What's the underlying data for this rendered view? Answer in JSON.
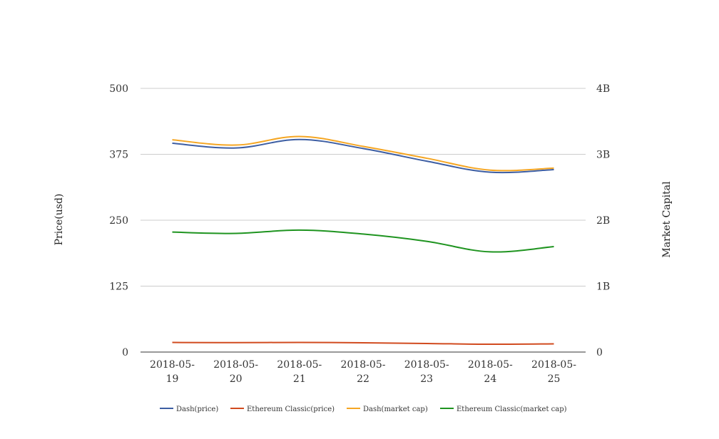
{
  "chart_data": {
    "type": "line",
    "title": "",
    "categories": [
      [
        "2018-05-",
        "19"
      ],
      [
        "2018-05-",
        "20"
      ],
      [
        "2018-05-",
        "21"
      ],
      [
        "2018-05-",
        "22"
      ],
      [
        "2018-05-",
        "23"
      ],
      [
        "2018-05-",
        "24"
      ],
      [
        "2018-05-",
        "25"
      ]
    ],
    "y_left": {
      "label": "Price(usd)",
      "range": [
        0,
        500
      ],
      "ticks": [
        "0",
        "125",
        "250",
        "375",
        "500"
      ]
    },
    "y_right": {
      "label": "Market Capital",
      "range": [
        0,
        4000000000
      ],
      "ticks": [
        "0",
        "1B",
        "2B",
        "3B",
        "4B"
      ]
    },
    "grid": true,
    "legend_position": "bottom",
    "series": [
      {
        "name": "Dash(price)",
        "axis": "left",
        "color": "#3d5ea3",
        "values": [
          396,
          387,
          403,
          386,
          362,
          341,
          346
        ]
      },
      {
        "name": "Ethereum Classic(price)",
        "axis": "left",
        "color": "#d14b1f",
        "values": [
          18.2,
          17.9,
          18.3,
          17.5,
          16.3,
          14.8,
          15.5
        ]
      },
      {
        "name": "Dash(market cap)",
        "axis": "right",
        "color": "#f5a623",
        "values": [
          3220000000,
          3140000000,
          3270000000,
          3120000000,
          2940000000,
          2760000000,
          2790000000
        ]
      },
      {
        "name": "Ethereum Classic(market cap)",
        "axis": "right",
        "color": "#1f9420",
        "values": [
          1820000000,
          1800000000,
          1850000000,
          1790000000,
          1680000000,
          1520000000,
          1600000000
        ]
      }
    ]
  }
}
